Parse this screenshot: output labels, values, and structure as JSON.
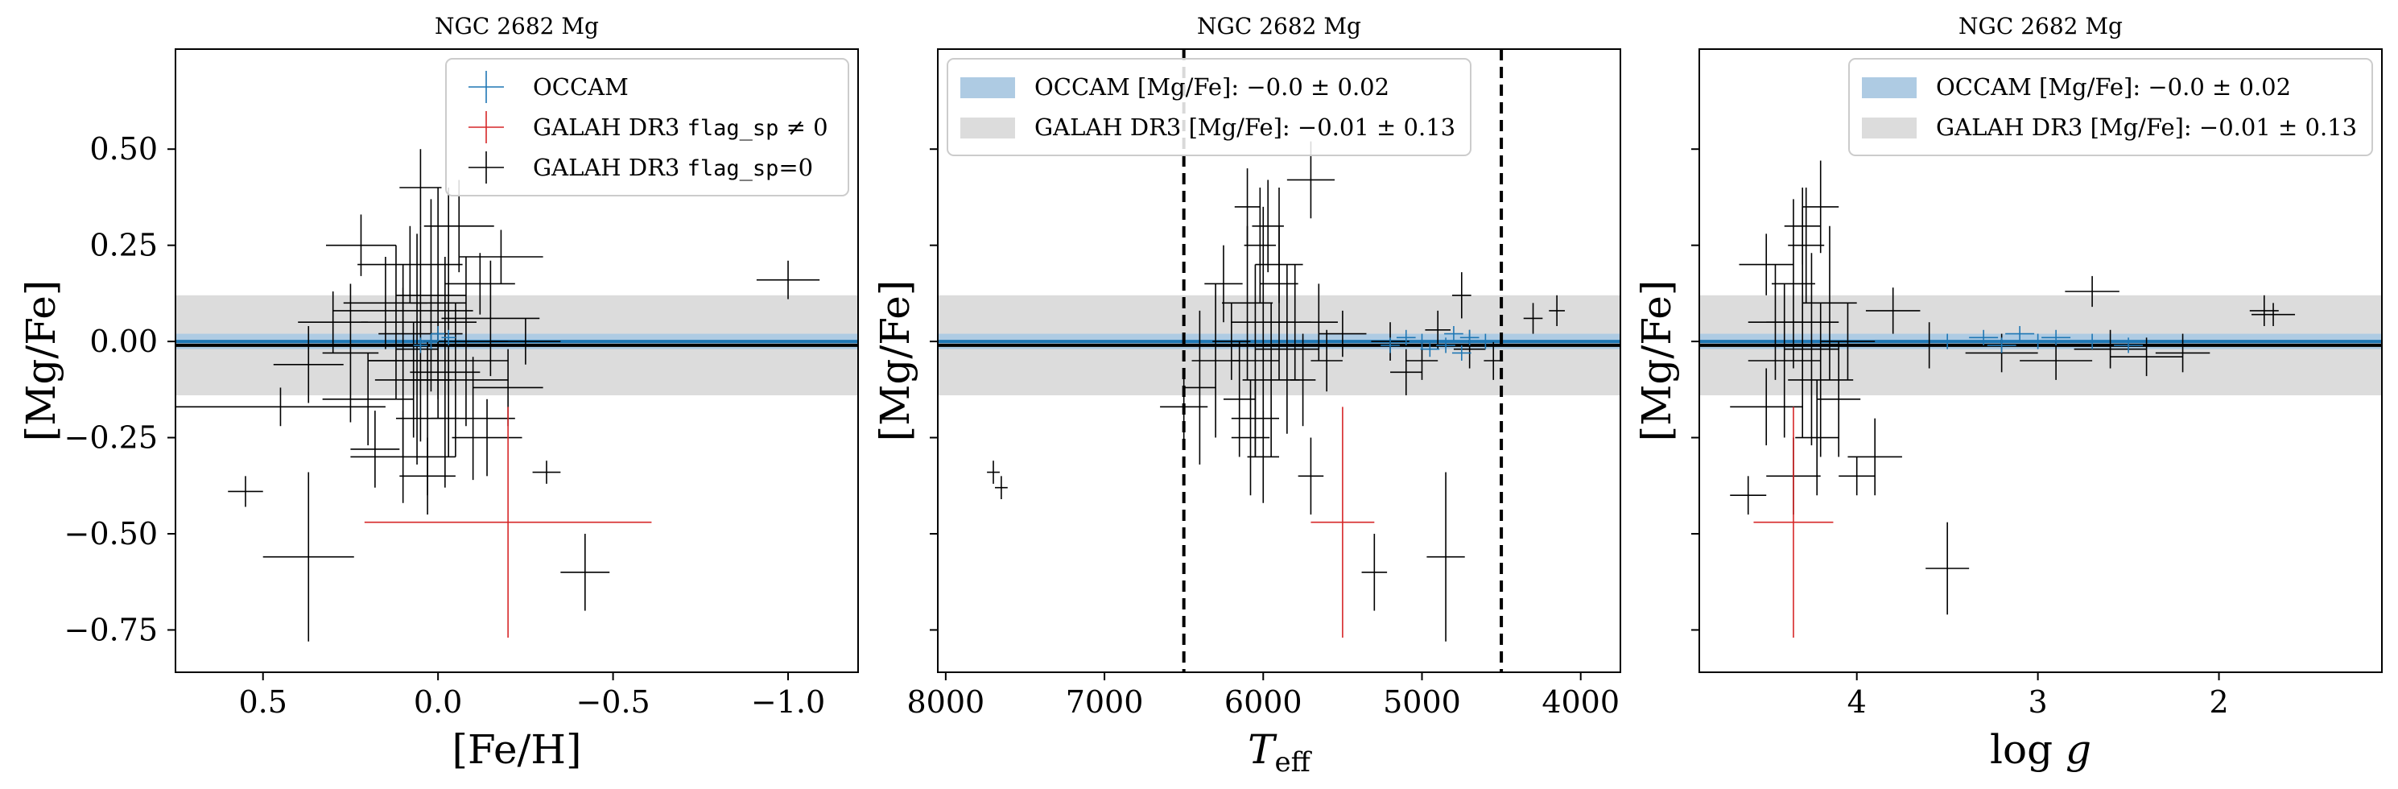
{
  "chart_data": [
    {
      "type": "scatter",
      "title": "NGC 2682 Mg",
      "xlabel": "[Fe/H]",
      "ylabel": "[Mg/Fe]",
      "xlim": [
        0.75,
        -1.2
      ],
      "ylim": [
        -0.86,
        0.76
      ],
      "x_inverted": true,
      "xticks": [
        0.5,
        0.0,
        -0.5,
        -1.0
      ],
      "xtick_labels": [
        "0.5",
        "0.0",
        "−0.5",
        "−1.0"
      ],
      "yticks": [
        0.5,
        0.25,
        0.0,
        -0.25,
        -0.5,
        -0.75
      ],
      "ytick_labels": [
        "0.50",
        "0.25",
        "0.00",
        "−0.25",
        "−0.50",
        "−0.75"
      ],
      "show_ytick_labels": true,
      "bands": [
        {
          "center": 0.0,
          "halfwidth": 0.02,
          "color": "#aecbe3",
          "edge": "#1f77b4"
        },
        {
          "center": -0.01,
          "halfwidth": 0.13,
          "color": "#dcdcdc",
          "edge": "#000000"
        }
      ],
      "vlines": [],
      "legend": {
        "position": "top-right",
        "entries": [
          {
            "kind": "cross",
            "color": "#1f77b4",
            "label": "OCCAM"
          },
          {
            "kind": "cross",
            "color": "#d62728",
            "label": "GALAH DR3 ",
            "mono": "flag_sp",
            "suffix": " ≠ 0"
          },
          {
            "kind": "cross",
            "color": "#000000",
            "label": "GALAH DR3 ",
            "mono": "flag_sp",
            "suffix": "=0"
          }
        ]
      },
      "series": [
        {
          "name": "GALAH DR3 flag_sp=0",
          "color": "#000000",
          "points": [
            [
              0.55,
              -0.39,
              0.05,
              0.04
            ],
            [
              0.37,
              -0.56,
              0.13,
              0.22
            ],
            [
              0.37,
              -0.06,
              0.1,
              0.1
            ],
            [
              -0.42,
              -0.6,
              0.07,
              0.1
            ],
            [
              -0.31,
              -0.34,
              0.04,
              0.03
            ],
            [
              -1.0,
              0.16,
              0.09,
              0.05
            ],
            [
              0.1,
              -0.05,
              0.1,
              0.25
            ],
            [
              0.05,
              0.02,
              0.12,
              0.28
            ],
            [
              -0.05,
              -0.1,
              0.15,
              0.2
            ],
            [
              0.2,
              -0.15,
              0.13,
              0.12
            ],
            [
              -0.15,
              0.06,
              0.14,
              0.15
            ],
            [
              0.0,
              0.1,
              0.08,
              0.3
            ],
            [
              0.25,
              -0.03,
              0.08,
              0.18
            ],
            [
              -0.1,
              -0.2,
              0.12,
              0.16
            ],
            [
              0.08,
              0.2,
              0.15,
              0.1
            ],
            [
              0.12,
              0.05,
              0.1,
              0.2
            ],
            [
              -0.02,
              -0.08,
              0.1,
              0.3
            ],
            [
              0.03,
              -0.2,
              0.09,
              0.2
            ],
            [
              -0.08,
              0.0,
              0.12,
              0.22
            ],
            [
              0.15,
              0.1,
              0.12,
              0.12
            ],
            [
              -0.2,
              -0.12,
              0.1,
              0.1
            ],
            [
              0.02,
              0.12,
              0.1,
              0.25
            ],
            [
              0.06,
              -0.02,
              0.06,
              0.3
            ],
            [
              -0.12,
              0.15,
              0.1,
              0.08
            ],
            [
              0.18,
              -0.28,
              0.07,
              0.1
            ],
            [
              0.1,
              -0.3,
              0.15,
              0.12
            ],
            [
              0.45,
              -0.17,
              0.3,
              0.05
            ],
            [
              -0.06,
              0.3,
              0.1,
              0.12
            ],
            [
              0.0,
              -0.05,
              0.2,
              0.1
            ],
            [
              0.1,
              0.08,
              0.2,
              0.06
            ],
            [
              -0.03,
              0.05,
              0.08,
              0.35
            ],
            [
              0.07,
              -0.1,
              0.11,
              0.15
            ],
            [
              -0.18,
              0.22,
              0.12,
              0.07
            ],
            [
              0.22,
              0.25,
              0.1,
              0.08
            ],
            [
              -0.14,
              -0.25,
              0.1,
              0.1
            ],
            [
              0.03,
              -0.35,
              0.08,
              0.1
            ],
            [
              0.05,
              0.4,
              0.06,
              0.1
            ],
            [
              -0.25,
              0.0,
              0.1,
              0.06
            ],
            [
              0.3,
              0.05,
              0.1,
              0.08
            ]
          ]
        },
        {
          "name": "GALAH DR3 flag_sp ≠ 0",
          "color": "#d62728",
          "points": [
            [
              -0.2,
              -0.47,
              0.41,
              0.3
            ]
          ]
        },
        {
          "name": "OCCAM",
          "color": "#1f77b4",
          "points": [
            [
              0.02,
              0.0,
              0.02,
              0.02
            ],
            [
              -0.03,
              0.01,
              0.02,
              0.02
            ],
            [
              0.05,
              -0.01,
              0.02,
              0.02
            ],
            [
              0.0,
              0.02,
              0.02,
              0.02
            ]
          ]
        }
      ]
    },
    {
      "type": "scatter",
      "title": "NGC 2682 Mg",
      "xlabel": "T",
      "xlabel_sub": "eff",
      "ylabel": "[Mg/Fe]",
      "xlim": [
        8050,
        3750
      ],
      "ylim": [
        -0.86,
        0.76
      ],
      "x_inverted": true,
      "xticks": [
        8000,
        7000,
        6000,
        5000,
        4000
      ],
      "xtick_labels": [
        "8000",
        "7000",
        "6000",
        "5000",
        "4000"
      ],
      "yticks": [
        0.5,
        0.25,
        0.0,
        -0.25,
        -0.5,
        -0.75
      ],
      "ytick_labels": [
        "0.50",
        "0.25",
        "0.00",
        "−0.25",
        "−0.50",
        "−0.75"
      ],
      "show_ytick_labels": false,
      "bands": [
        {
          "center": 0.0,
          "halfwidth": 0.02,
          "color": "#aecbe3",
          "edge": "#1f77b4"
        },
        {
          "center": -0.01,
          "halfwidth": 0.13,
          "color": "#dcdcdc",
          "edge": "#000000"
        }
      ],
      "vlines": [
        6500,
        4500
      ],
      "legend": {
        "position": "top-left",
        "entries": [
          {
            "kind": "patch",
            "color": "#aecbe3",
            "label": "OCCAM [Mg/Fe]: −0.0 ± 0.02"
          },
          {
            "kind": "patch",
            "color": "#dcdcdc",
            "label": "GALAH DR3 [Mg/Fe]: −0.01 ± 0.13"
          }
        ]
      },
      "series": [
        {
          "name": "GALAH DR3 flag_sp=0",
          "color": "#000000",
          "points": [
            [
              7700,
              -0.34,
              40,
              0.03
            ],
            [
              7650,
              -0.38,
              40,
              0.03
            ],
            [
              5700,
              0.42,
              150,
              0.1
            ],
            [
              5300,
              -0.6,
              80,
              0.1
            ],
            [
              4850,
              -0.56,
              120,
              0.22
            ],
            [
              4750,
              0.12,
              60,
              0.06
            ],
            [
              4300,
              0.06,
              60,
              0.04
            ],
            [
              4150,
              0.08,
              50,
              0.04
            ],
            [
              6050,
              -0.05,
              150,
              0.25
            ],
            [
              6000,
              0.05,
              200,
              0.3
            ],
            [
              5950,
              -0.1,
              180,
              0.2
            ],
            [
              6100,
              0.1,
              160,
              0.2
            ],
            [
              5900,
              0.15,
              120,
              0.25
            ],
            [
              6150,
              -0.15,
              100,
              0.15
            ],
            [
              5850,
              -0.02,
              200,
              0.22
            ],
            [
              6020,
              0.25,
              100,
              0.15
            ],
            [
              6200,
              0.0,
              120,
              0.1
            ],
            [
              5800,
              0.05,
              100,
              0.15
            ],
            [
              6080,
              -0.25,
              120,
              0.15
            ],
            [
              5970,
              0.3,
              100,
              0.12
            ],
            [
              6300,
              -0.05,
              150,
              0.2
            ],
            [
              5750,
              -0.1,
              80,
              0.12
            ],
            [
              6500,
              -0.17,
              150,
              0.1
            ],
            [
              6400,
              -0.12,
              100,
              0.2
            ],
            [
              6250,
              0.15,
              120,
              0.1
            ],
            [
              5650,
              0.05,
              120,
              0.1
            ],
            [
              5600,
              -0.05,
              100,
              0.08
            ],
            [
              5500,
              0.02,
              150,
              0.06
            ],
            [
              5200,
              0.0,
              120,
              0.05
            ],
            [
              5000,
              -0.05,
              100,
              0.05
            ],
            [
              4700,
              -0.02,
              100,
              0.05
            ],
            [
              4900,
              0.03,
              80,
              0.05
            ],
            [
              5100,
              -0.08,
              100,
              0.06
            ],
            [
              5700,
              -0.35,
              80,
              0.1
            ],
            [
              6000,
              -0.3,
              100,
              0.12
            ],
            [
              5900,
              0.2,
              150,
              0.1
            ],
            [
              6050,
              -0.2,
              150,
              0.1
            ],
            [
              6100,
              0.35,
              80,
              0.1
            ],
            [
              4550,
              -0.05,
              60,
              0.05
            ]
          ]
        },
        {
          "name": "GALAH DR3 flag_sp ≠ 0",
          "color": "#d62728",
          "points": [
            [
              5500,
              -0.47,
              200,
              0.3
            ]
          ]
        },
        {
          "name": "OCCAM",
          "color": "#1f77b4",
          "points": [
            [
              5000,
              0.0,
              60,
              0.02
            ],
            [
              4850,
              -0.01,
              60,
              0.02
            ],
            [
              4700,
              0.01,
              60,
              0.02
            ],
            [
              5100,
              0.01,
              60,
              0.02
            ],
            [
              4950,
              -0.02,
              60,
              0.02
            ],
            [
              4600,
              0.0,
              60,
              0.02
            ],
            [
              4800,
              0.02,
              60,
              0.02
            ],
            [
              5200,
              -0.01,
              60,
              0.02
            ],
            [
              4750,
              -0.03,
              60,
              0.02
            ]
          ]
        }
      ]
    },
    {
      "type": "scatter",
      "title": "NGC 2682 Mg",
      "xlabel": "log g",
      "ylabel": "[Mg/Fe]",
      "xlim": [
        4.87,
        1.1
      ],
      "ylim": [
        -0.86,
        0.76
      ],
      "x_inverted": true,
      "xticks": [
        4,
        3,
        2
      ],
      "xtick_labels": [
        "4",
        "3",
        "2"
      ],
      "yticks": [
        0.5,
        0.25,
        0.0,
        -0.25,
        -0.5,
        -0.75
      ],
      "ytick_labels": [
        "0.50",
        "0.25",
        "0.00",
        "−0.25",
        "−0.50",
        "−0.75"
      ],
      "show_ytick_labels": false,
      "bands": [
        {
          "center": 0.0,
          "halfwidth": 0.02,
          "color": "#aecbe3",
          "edge": "#1f77b4"
        },
        {
          "center": -0.01,
          "halfwidth": 0.13,
          "color": "#dcdcdc",
          "edge": "#000000"
        }
      ],
      "vlines": [],
      "legend": {
        "position": "top-right",
        "entries": [
          {
            "kind": "patch",
            "color": "#aecbe3",
            "label": "OCCAM [Mg/Fe]: −0.0 ± 0.02"
          },
          {
            "kind": "patch",
            "color": "#dcdcdc",
            "label": "GALAH DR3 [Mg/Fe]: −0.01 ± 0.13"
          }
        ]
      },
      "series": [
        {
          "name": "GALAH DR3 flag_sp=0",
          "color": "#000000",
          "points": [
            [
              3.5,
              -0.59,
              0.12,
              0.12
            ],
            [
              2.7,
              0.13,
              0.15,
              0.04
            ],
            [
              1.75,
              0.08,
              0.08,
              0.04
            ],
            [
              1.7,
              0.07,
              0.12,
              0.03
            ],
            [
              4.25,
              -0.02,
              0.15,
              0.25
            ],
            [
              4.3,
              0.05,
              0.2,
              0.3
            ],
            [
              4.2,
              -0.1,
              0.18,
              0.2
            ],
            [
              4.15,
              0.1,
              0.15,
              0.2
            ],
            [
              4.35,
              0.15,
              0.12,
              0.22
            ],
            [
              4.1,
              -0.15,
              0.12,
              0.15
            ],
            [
              4.28,
              0.25,
              0.1,
              0.15
            ],
            [
              4.4,
              -0.05,
              0.2,
              0.2
            ],
            [
              4.05,
              0.0,
              0.15,
              0.1
            ],
            [
              4.22,
              -0.25,
              0.12,
              0.15
            ],
            [
              4.3,
              0.3,
              0.1,
              0.1
            ],
            [
              4.45,
              0.05,
              0.15,
              0.15
            ],
            [
              3.9,
              -0.3,
              0.15,
              0.1
            ],
            [
              4.0,
              -0.35,
              0.1,
              0.05
            ],
            [
              4.5,
              -0.17,
              0.2,
              0.1
            ],
            [
              3.6,
              -0.01,
              0.3,
              0.06
            ],
            [
              3.2,
              -0.03,
              0.2,
              0.05
            ],
            [
              2.9,
              -0.05,
              0.2,
              0.05
            ],
            [
              2.6,
              -0.02,
              0.2,
              0.05
            ],
            [
              2.4,
              -0.04,
              0.2,
              0.05
            ],
            [
              2.2,
              -0.03,
              0.15,
              0.05
            ],
            [
              4.6,
              -0.4,
              0.1,
              0.05
            ],
            [
              4.35,
              -0.35,
              0.15,
              0.1
            ],
            [
              4.2,
              0.35,
              0.1,
              0.12
            ],
            [
              4.5,
              0.2,
              0.15,
              0.08
            ],
            [
              3.8,
              0.08,
              0.15,
              0.06
            ]
          ]
        },
        {
          "name": "GALAH DR3 flag_sp ≠ 0",
          "color": "#d62728",
          "points": [
            [
              4.35,
              -0.47,
              0.22,
              0.3
            ]
          ]
        },
        {
          "name": "OCCAM",
          "color": "#1f77b4",
          "points": [
            [
              3.3,
              0.01,
              0.08,
              0.02
            ],
            [
              3.1,
              0.02,
              0.08,
              0.02
            ],
            [
              2.9,
              0.01,
              0.08,
              0.02
            ],
            [
              2.7,
              0.0,
              0.08,
              0.02
            ],
            [
              2.5,
              -0.01,
              0.08,
              0.02
            ],
            [
              3.5,
              0.0,
              0.08,
              0.02
            ],
            [
              3.2,
              -0.01,
              0.08,
              0.02
            ],
            [
              3.0,
              0.0,
              0.08,
              0.02
            ]
          ]
        }
      ]
    }
  ]
}
